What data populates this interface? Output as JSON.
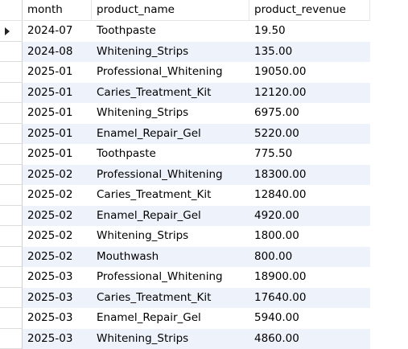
{
  "grid": {
    "columns": [
      "month",
      "product_name",
      "product_revenue"
    ],
    "rows": [
      {
        "month": "2024-07",
        "product_name": "Toothpaste",
        "product_revenue": "19.50"
      },
      {
        "month": "2024-08",
        "product_name": "Whitening_Strips",
        "product_revenue": "135.00"
      },
      {
        "month": "2025-01",
        "product_name": "Professional_Whitening",
        "product_revenue": "19050.00"
      },
      {
        "month": "2025-01",
        "product_name": "Caries_Treatment_Kit",
        "product_revenue": "12120.00"
      },
      {
        "month": "2025-01",
        "product_name": "Whitening_Strips",
        "product_revenue": "6975.00"
      },
      {
        "month": "2025-01",
        "product_name": "Enamel_Repair_Gel",
        "product_revenue": "5220.00"
      },
      {
        "month": "2025-01",
        "product_name": "Toothpaste",
        "product_revenue": "775.50"
      },
      {
        "month": "2025-02",
        "product_name": "Professional_Whitening",
        "product_revenue": "18300.00"
      },
      {
        "month": "2025-02",
        "product_name": "Caries_Treatment_Kit",
        "product_revenue": "12840.00"
      },
      {
        "month": "2025-02",
        "product_name": "Enamel_Repair_Gel",
        "product_revenue": "4920.00"
      },
      {
        "month": "2025-02",
        "product_name": "Whitening_Strips",
        "product_revenue": "1800.00"
      },
      {
        "month": "2025-02",
        "product_name": "Mouthwash",
        "product_revenue": "800.00"
      },
      {
        "month": "2025-03",
        "product_name": "Professional_Whitening",
        "product_revenue": "18900.00"
      },
      {
        "month": "2025-03",
        "product_name": "Caries_Treatment_Kit",
        "product_revenue": "17640.00"
      },
      {
        "month": "2025-03",
        "product_name": "Enamel_Repair_Gel",
        "product_revenue": "5940.00"
      },
      {
        "month": "2025-03",
        "product_name": "Whitening_Strips",
        "product_revenue": "4860.00"
      }
    ],
    "current_row_indicator": "right-triangle-icon",
    "colors": {
      "alt_row": "#eef3fb",
      "border": "#e5e5e5"
    }
  }
}
